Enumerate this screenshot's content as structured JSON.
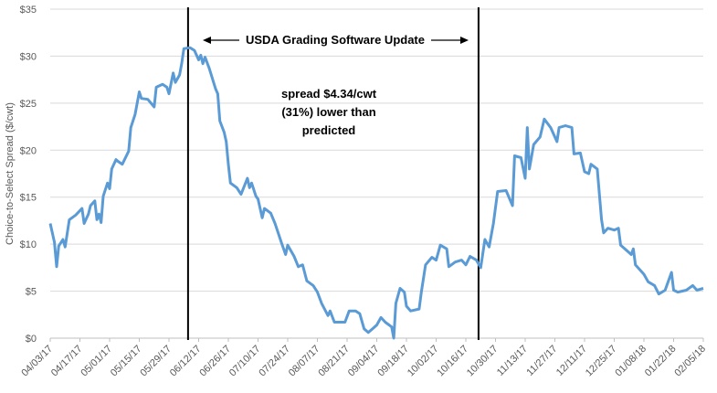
{
  "chart_data": {
    "type": "line",
    "y_label": "Choice-to-Select Spread ($/cwt)",
    "ylim": [
      0,
      35
    ],
    "yticks": [
      {
        "value": 0,
        "label": "$0"
      },
      {
        "value": 5,
        "label": "$5"
      },
      {
        "value": 10,
        "label": "$10"
      },
      {
        "value": 15,
        "label": "$15"
      },
      {
        "value": 20,
        "label": "$20"
      },
      {
        "value": 25,
        "label": "$25"
      },
      {
        "value": 30,
        "label": "$30"
      },
      {
        "value": 35,
        "label": "$35"
      }
    ],
    "xlim": [
      "04/03/17",
      "02/05/18"
    ],
    "xticks": [
      "04/03/17",
      "04/17/17",
      "05/01/17",
      "05/15/17",
      "05/29/17",
      "06/12/17",
      "06/26/17",
      "07/10/17",
      "07/24/17",
      "08/07/17",
      "08/21/17",
      "09/04/17",
      "09/18/17",
      "10/02/17",
      "10/16/17",
      "10/30/17",
      "11/13/17",
      "11/27/17",
      "12/11/17",
      "12/25/17",
      "01/08/18",
      "01/22/18",
      "02/05/18"
    ],
    "grid": true,
    "series": [
      {
        "color": "#5b9bd5",
        "x": [
          "04/03/17",
          "04/05/17",
          "04/06/17",
          "04/07/17",
          "04/09/17",
          "04/10/17",
          "04/12/17",
          "04/15/17",
          "04/18/17",
          "04/19/17",
          "04/21/17",
          "04/22/17",
          "04/24/17",
          "04/25/17",
          "04/26/17",
          "04/27/17",
          "04/28/17",
          "04/30/17",
          "05/01/17",
          "05/02/17",
          "05/04/17",
          "05/05/17",
          "05/07/17",
          "05/10/17",
          "05/11/17",
          "05/13/17",
          "05/15/17",
          "05/16/17",
          "05/19/17",
          "05/22/17",
          "05/23/17",
          "05/26/17",
          "05/28/17",
          "05/29/17",
          "05/31/17",
          "06/01/17",
          "06/03/17",
          "06/04/17",
          "06/05/17",
          "06/08/17",
          "06/10/17",
          "06/12/17",
          "06/13/17",
          "06/14/17",
          "06/15/17",
          "06/17/17",
          "06/20/17",
          "06/21/17",
          "06/22/17",
          "06/24/17",
          "06/25/17",
          "06/26/17",
          "06/27/17",
          "06/30/17",
          "07/02/17",
          "07/05/17",
          "07/06/17",
          "07/07/17",
          "07/09/17",
          "07/10/17",
          "07/12/17",
          "07/13/17",
          "07/16/17",
          "07/18/17",
          "07/21/17",
          "07/23/17",
          "07/24/17",
          "07/27/17",
          "07/29/17",
          "07/31/17",
          "08/02/17",
          "08/05/17",
          "08/07/17",
          "08/09/17",
          "08/12/17",
          "08/13/17",
          "08/15/17",
          "08/18/17",
          "08/20/17",
          "08/22/17",
          "08/25/17",
          "08/27/17",
          "08/29/17",
          "08/31/17",
          "09/02/17",
          "09/04/17",
          "09/06/17",
          "09/08/17",
          "09/11/17",
          "09/12/17",
          "09/13/17",
          "09/15/17",
          "09/17/17",
          "09/18/17",
          "09/20/17",
          "09/24/17",
          "09/25/17",
          "09/27/17",
          "09/30/17",
          "10/02/17",
          "10/04/17",
          "10/07/17",
          "10/08/17",
          "10/11/17",
          "10/14/17",
          "10/16/17",
          "10/18/17",
          "10/21/17",
          "10/23/17",
          "10/25/17",
          "10/27/17",
          "10/29/17",
          "10/31/17",
          "11/04/17",
          "11/07/17",
          "11/08/17",
          "11/11/17",
          "11/13/17",
          "11/14/17",
          "11/15/17",
          "11/17/17",
          "11/20/17",
          "11/22/17",
          "11/25/17",
          "11/28/17",
          "11/29/17",
          "12/02/17",
          "12/05/17",
          "12/06/17",
          "12/09/17",
          "12/11/17",
          "12/13/17",
          "12/14/17",
          "12/17/17",
          "12/19/17",
          "12/20/17",
          "12/22/17",
          "12/25/17",
          "12/27/17",
          "12/28/17",
          "12/30/17",
          "01/02/18",
          "01/03/18",
          "01/04/18",
          "01/08/18",
          "01/10/18",
          "01/13/18",
          "01/15/18",
          "01/18/18",
          "01/21/18",
          "01/22/18",
          "01/24/18",
          "01/28/18",
          "01/31/18",
          "02/02/18",
          "02/05/18"
        ],
        "values": [
          12.2,
          10.2,
          7.6,
          9.8,
          10.5,
          9.7,
          12.6,
          13.1,
          13.8,
          12.2,
          13.2,
          14.1,
          14.6,
          12.6,
          13.2,
          12.3,
          15.1,
          16.5,
          15.9,
          18.0,
          19.0,
          18.8,
          18.5,
          19.9,
          22.4,
          23.8,
          26.2,
          25.5,
          25.4,
          24.6,
          26.7,
          27.0,
          26.7,
          26.0,
          28.2,
          27.2,
          28.0,
          29.2,
          30.8,
          30.9,
          30.6,
          29.6,
          30.1,
          29.2,
          29.9,
          28.7,
          26.5,
          26.0,
          23.1,
          21.9,
          20.9,
          18.5,
          16.5,
          16.0,
          15.3,
          17.0,
          16.0,
          16.5,
          15.1,
          14.8,
          12.8,
          13.8,
          13.3,
          12.2,
          10.2,
          8.9,
          9.9,
          8.7,
          7.6,
          7.8,
          6.1,
          5.6,
          4.9,
          3.7,
          2.4,
          2.9,
          1.7,
          1.7,
          1.7,
          2.9,
          2.9,
          2.6,
          1.0,
          0.6,
          1.0,
          1.4,
          2.2,
          1.7,
          1.2,
          0,
          3.7,
          5.3,
          4.9,
          3.4,
          2.9,
          3.1,
          4.9,
          7.8,
          8.6,
          8.3,
          9.9,
          9.5,
          7.6,
          8.1,
          8.3,
          7.8,
          8.7,
          8.3,
          7.5,
          10.5,
          9.7,
          12.2,
          15.6,
          15.7,
          14.1,
          19.4,
          19.2,
          17.0,
          22.4,
          18.0,
          20.6,
          21.4,
          23.3,
          22.4,
          20.9,
          22.4,
          22.6,
          22.4,
          19.6,
          19.7,
          17.7,
          17.5,
          18.5,
          18.0,
          12.6,
          11.2,
          11.7,
          11.5,
          11.7,
          9.9,
          9.5,
          8.9,
          9.5,
          7.8,
          6.8,
          6.0,
          5.6,
          4.7,
          5.1,
          7.0,
          5.1,
          4.9,
          5.1,
          5.6,
          5.1,
          5.3
        ]
      }
    ],
    "vlines": {
      "x": [
        "06/07/17",
        "10/22/17"
      ],
      "color": "#000000"
    },
    "annotations": {
      "period": "USDA Grading Software Update",
      "note": [
        "spread $4.34/cwt",
        "(31%) lower than",
        "predicted"
      ]
    }
  }
}
